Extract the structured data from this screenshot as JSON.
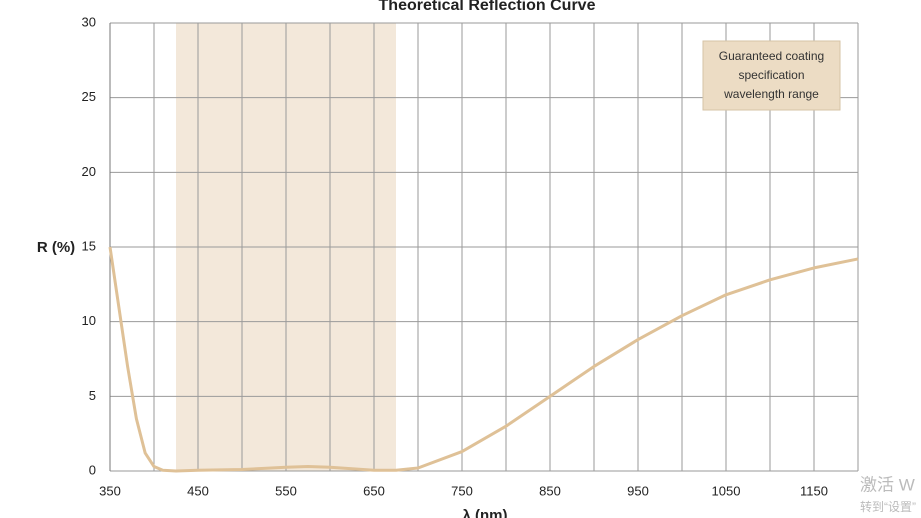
{
  "chart_data": {
    "type": "line",
    "title": "Theoretical Reflection Curve",
    "x_label": "λ (nm)",
    "y_label": "R (%)",
    "x": [
      350,
      360,
      370,
      380,
      390,
      400,
      410,
      425,
      450,
      500,
      550,
      575,
      600,
      650,
      675,
      700,
      750,
      800,
      850,
      900,
      950,
      1000,
      1050,
      1100,
      1150,
      1200
    ],
    "series": [
      {
        "color": "#dfc197",
        "values": [
          15,
          11,
          7,
          3.5,
          1.2,
          0.3,
          0.05,
          0,
          0.05,
          0.1,
          0.25,
          0.3,
          0.25,
          0.05,
          0.05,
          0.2,
          1.3,
          3,
          5,
          7,
          8.8,
          10.4,
          11.8,
          12.8,
          13.6,
          14.2
        ]
      }
    ],
    "xlim": [
      350,
      1200
    ],
    "xticks": [
      350,
      450,
      550,
      650,
      750,
      850,
      950,
      1050,
      1150
    ],
    "x_minor_ticks": [
      400,
      500,
      600,
      700,
      800,
      900,
      1000,
      1100,
      1200
    ],
    "ylim": [
      0,
      30
    ],
    "yticks": [
      0,
      5,
      10,
      15,
      20,
      25,
      30
    ],
    "grid": true,
    "band": {
      "range": [
        425,
        675
      ],
      "color": "#f3e8da",
      "label": "Guaranteed coating specification wavelength range",
      "label_color": "#ecdcc4"
    },
    "watermark": [
      "激活 W",
      "转到“设置”"
    ]
  }
}
